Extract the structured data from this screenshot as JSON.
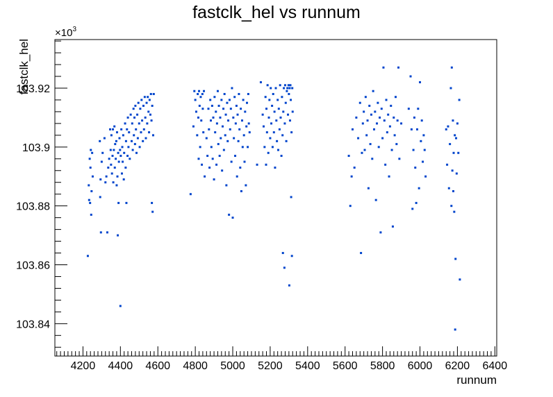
{
  "chart_data": {
    "type": "scatter",
    "title": "fastclk_hel vs runnum",
    "xlabel": "runnum",
    "ylabel": "fastclk_hel",
    "y_multiplier_label": "×10",
    "y_multiplier_exp": "3",
    "xlim": [
      4050,
      6410
    ],
    "ylim": [
      103.829,
      103.9365
    ],
    "x_ticks": [
      "4200",
      "4400",
      "4600",
      "4800",
      "5000",
      "5200",
      "5400",
      "5600",
      "5800",
      "6000",
      "6200",
      "6400"
    ],
    "y_ticks": [
      "103.84",
      "103.86",
      "103.88",
      "103.9",
      "103.92"
    ],
    "marker_color": "#0044cc",
    "grid": false,
    "points": [
      [
        4226,
        103.863
      ],
      [
        4231,
        103.887
      ],
      [
        4233,
        103.882
      ],
      [
        4236,
        103.896
      ],
      [
        4238,
        103.881
      ],
      [
        4240,
        103.893
      ],
      [
        4242,
        103.899
      ],
      [
        4244,
        103.877
      ],
      [
        4246,
        103.885
      ],
      [
        4249,
        103.898
      ],
      [
        4252,
        103.89
      ],
      [
        4290,
        103.902
      ],
      [
        4292,
        103.883
      ],
      [
        4294,
        103.889
      ],
      [
        4296,
        103.871
      ],
      [
        4300,
        103.895
      ],
      [
        4305,
        103.898
      ],
      [
        4315,
        103.903
      ],
      [
        4320,
        103.888
      ],
      [
        4325,
        103.89
      ],
      [
        4330,
        103.871
      ],
      [
        4335,
        103.893
      ],
      [
        4340,
        103.896
      ],
      [
        4345,
        103.906
      ],
      [
        4348,
        103.899
      ],
      [
        4350,
        103.894
      ],
      [
        4352,
        103.904
      ],
      [
        4355,
        103.891
      ],
      [
        4358,
        103.897
      ],
      [
        4360,
        103.906
      ],
      [
        4362,
        103.888
      ],
      [
        4365,
        103.899
      ],
      [
        4368,
        103.907
      ],
      [
        4370,
        103.893
      ],
      [
        4372,
        103.901
      ],
      [
        4375,
        103.896
      ],
      [
        4378,
        103.902
      ],
      [
        4380,
        103.887
      ],
      [
        4382,
        103.905
      ],
      [
        4384,
        103.89
      ],
      [
        4386,
        103.87
      ],
      [
        4388,
        103.898
      ],
      [
        4390,
        103.881
      ],
      [
        4392,
        103.895
      ],
      [
        4395,
        103.903
      ],
      [
        4398,
        103.899
      ],
      [
        4400,
        103.846
      ],
      [
        4402,
        103.897
      ],
      [
        4405,
        103.906
      ],
      [
        4408,
        103.891
      ],
      [
        4410,
        103.9
      ],
      [
        4412,
        103.895
      ],
      [
        4415,
        103.904
      ],
      [
        4418,
        103.889
      ],
      [
        4420,
        103.898
      ],
      [
        4425,
        103.908
      ],
      [
        4428,
        103.893
      ],
      [
        4430,
        103.902
      ],
      [
        4432,
        103.881
      ],
      [
        4435,
        103.906
      ],
      [
        4438,
        103.897
      ],
      [
        4440,
        103.91
      ],
      [
        4443,
        103.9
      ],
      [
        4446,
        103.905
      ],
      [
        4450,
        103.896
      ],
      [
        4455,
        103.911
      ],
      [
        4460,
        103.902
      ],
      [
        4463,
        103.908
      ],
      [
        4466,
        103.899
      ],
      [
        4470,
        103.913
      ],
      [
        4472,
        103.904
      ],
      [
        4475,
        103.91
      ],
      [
        4478,
        103.901
      ],
      [
        4480,
        103.914
      ],
      [
        4483,
        103.906
      ],
      [
        4486,
        103.898
      ],
      [
        4490,
        103.911
      ],
      [
        4493,
        103.903
      ],
      [
        4496,
        103.915
      ],
      [
        4500,
        103.908
      ],
      [
        4503,
        103.9
      ],
      [
        4506,
        103.913
      ],
      [
        4510,
        103.905
      ],
      [
        4513,
        103.916
      ],
      [
        4516,
        103.909
      ],
      [
        4520,
        103.902
      ],
      [
        4523,
        103.914
      ],
      [
        4526,
        103.906
      ],
      [
        4530,
        103.917
      ],
      [
        4533,
        103.91
      ],
      [
        4536,
        103.903
      ],
      [
        4540,
        103.915
      ],
      [
        4543,
        103.908
      ],
      [
        4546,
        103.917
      ],
      [
        4550,
        103.912
      ],
      [
        4553,
        103.905
      ],
      [
        4556,
        103.916
      ],
      [
        4560,
        103.911
      ],
      [
        4563,
        103.918
      ],
      [
        4566,
        103.909
      ],
      [
        4568,
        103.881
      ],
      [
        4570,
        103.914
      ],
      [
        4572,
        103.878
      ],
      [
        4575,
        103.904
      ],
      [
        4578,
        103.918
      ],
      [
        4775,
        103.884
      ],
      [
        4790,
        103.907
      ],
      [
        4795,
        103.919
      ],
      [
        4800,
        103.916
      ],
      [
        4805,
        103.912
      ],
      [
        4810,
        103.904
      ],
      [
        4813,
        103.918
      ],
      [
        4816,
        103.91
      ],
      [
        4818,
        103.896
      ],
      [
        4820,
        103.919
      ],
      [
        4823,
        103.914
      ],
      [
        4826,
        103.9
      ],
      [
        4829,
        103.917
      ],
      [
        4832,
        103.909
      ],
      [
        4835,
        103.894
      ],
      [
        4838,
        103.918
      ],
      [
        4840,
        103.913
      ],
      [
        4843,
        103.905
      ],
      [
        4846,
        103.919
      ],
      [
        4850,
        103.89
      ],
      [
        4860,
        103.903
      ],
      [
        4865,
        103.897
      ],
      [
        4870,
        103.913
      ],
      [
        4873,
        103.906
      ],
      [
        4876,
        103.893
      ],
      [
        4880,
        103.916
      ],
      [
        4883,
        103.909
      ],
      [
        4886,
        103.9
      ],
      [
        4890,
        103.914
      ],
      [
        4893,
        103.896
      ],
      [
        4896,
        103.91
      ],
      [
        4900,
        103.889
      ],
      [
        4903,
        103.917
      ],
      [
        4906,
        103.905
      ],
      [
        4910,
        103.912
      ],
      [
        4913,
        103.894
      ],
      [
        4916,
        103.908
      ],
      [
        4920,
        103.919
      ],
      [
        4923,
        103.901
      ],
      [
        4926,
        103.914
      ],
      [
        4930,
        103.897
      ],
      [
        4933,
        103.91
      ],
      [
        4936,
        103.903
      ],
      [
        4940,
        103.916
      ],
      [
        4943,
        103.892
      ],
      [
        4946,
        103.907
      ],
      [
        4950,
        103.913
      ],
      [
        4953,
        103.899
      ],
      [
        4956,
        103.918
      ],
      [
        4960,
        103.904
      ],
      [
        4963,
        103.911
      ],
      [
        4966,
        103.887
      ],
      [
        4970,
        103.915
      ],
      [
        4973,
        103.902
      ],
      [
        4976,
        103.909
      ],
      [
        4980,
        103.877
      ],
      [
        4983,
        103.916
      ],
      [
        4986,
        103.906
      ],
      [
        4990,
        103.913
      ],
      [
        4993,
        103.895
      ],
      [
        4996,
        103.92
      ],
      [
        5000,
        103.876
      ],
      [
        5003,
        103.91
      ],
      [
        5006,
        103.903
      ],
      [
        5010,
        103.917
      ],
      [
        5013,
        103.897
      ],
      [
        5016,
        103.908
      ],
      [
        5020,
        103.914
      ],
      [
        5023,
        103.89
      ],
      [
        5026,
        103.911
      ],
      [
        5030,
        103.902
      ],
      [
        5033,
        103.918
      ],
      [
        5036,
        103.906
      ],
      [
        5040,
        103.893
      ],
      [
        5043,
        103.913
      ],
      [
        5046,
        103.885
      ],
      [
        5050,
        103.909
      ],
      [
        5053,
        103.9
      ],
      [
        5056,
        103.916
      ],
      [
        5060,
        103.904
      ],
      [
        5063,
        103.895
      ],
      [
        5066,
        103.912
      ],
      [
        5070,
        103.887
      ],
      [
        5073,
        103.907
      ],
      [
        5076,
        103.915
      ],
      [
        5080,
        103.9
      ],
      [
        5083,
        103.918
      ],
      [
        5086,
        103.908
      ],
      [
        5090,
        103.905
      ],
      [
        5130,
        103.894
      ],
      [
        5150,
        103.922
      ],
      [
        5160,
        103.911
      ],
      [
        5165,
        103.907
      ],
      [
        5170,
        103.9
      ],
      [
        5175,
        103.917
      ],
      [
        5178,
        103.894
      ],
      [
        5180,
        103.913
      ],
      [
        5183,
        103.905
      ],
      [
        5186,
        103.921
      ],
      [
        5190,
        103.898
      ],
      [
        5193,
        103.91
      ],
      [
        5196,
        103.916
      ],
      [
        5200,
        103.903
      ],
      [
        5203,
        103.92
      ],
      [
        5206,
        103.908
      ],
      [
        5210,
        103.914
      ],
      [
        5213,
        103.9
      ],
      [
        5216,
        103.918
      ],
      [
        5220,
        103.905
      ],
      [
        5223,
        103.912
      ],
      [
        5226,
        103.893
      ],
      [
        5230,
        103.92
      ],
      [
        5233,
        103.909
      ],
      [
        5236,
        103.902
      ],
      [
        5240,
        103.916
      ],
      [
        5243,
        103.899
      ],
      [
        5246,
        103.913
      ],
      [
        5250,
        103.906
      ],
      [
        5253,
        103.921
      ],
      [
        5256,
        103.91
      ],
      [
        5260,
        103.897
      ],
      [
        5263,
        103.917
      ],
      [
        5266,
        103.904
      ],
      [
        5268,
        103.864
      ],
      [
        5270,
        103.912
      ],
      [
        5273,
        103.92
      ],
      [
        5276,
        103.859
      ],
      [
        5278,
        103.908
      ],
      [
        5280,
        103.921
      ],
      [
        5283,
        103.915
      ],
      [
        5286,
        103.902
      ],
      [
        5289,
        103.919
      ],
      [
        5292,
        103.92
      ],
      [
        5295,
        103.911
      ],
      [
        5298,
        103.921
      ],
      [
        5300,
        103.918
      ],
      [
        5302,
        103.853
      ],
      [
        5304,
        103.92
      ],
      [
        5306,
        103.909
      ],
      [
        5308,
        103.921
      ],
      [
        5310,
        103.916
      ],
      [
        5312,
        103.883
      ],
      [
        5314,
        103.905
      ],
      [
        5316,
        103.863
      ],
      [
        5318,
        103.92
      ],
      [
        5320,
        103.912
      ],
      [
        5620,
        103.897
      ],
      [
        5628,
        103.88
      ],
      [
        5635,
        103.89
      ],
      [
        5640,
        103.906
      ],
      [
        5650,
        103.893
      ],
      [
        5660,
        103.91
      ],
      [
        5670,
        103.903
      ],
      [
        5680,
        103.915
      ],
      [
        5685,
        103.864
      ],
      [
        5690,
        103.898
      ],
      [
        5695,
        103.908
      ],
      [
        5700,
        103.912
      ],
      [
        5705,
        103.899
      ],
      [
        5710,
        103.917
      ],
      [
        5715,
        103.904
      ],
      [
        5720,
        103.909
      ],
      [
        5725,
        103.886
      ],
      [
        5730,
        103.914
      ],
      [
        5735,
        103.901
      ],
      [
        5740,
        103.911
      ],
      [
        5745,
        103.896
      ],
      [
        5750,
        103.919
      ],
      [
        5755,
        103.906
      ],
      [
        5760,
        103.912
      ],
      [
        5765,
        103.882
      ],
      [
        5770,
        103.908
      ],
      [
        5775,
        103.915
      ],
      [
        5780,
        103.9
      ],
      [
        5785,
        103.91
      ],
      [
        5790,
        103.871
      ],
      [
        5795,
        103.913
      ],
      [
        5800,
        103.903
      ],
      [
        5805,
        103.927
      ],
      [
        5810,
        103.909
      ],
      [
        5815,
        103.894
      ],
      [
        5820,
        103.916
      ],
      [
        5825,
        103.905
      ],
      [
        5830,
        103.911
      ],
      [
        5835,
        103.89
      ],
      [
        5840,
        103.907
      ],
      [
        5845,
        103.914
      ],
      [
        5850,
        103.899
      ],
      [
        5855,
        103.873
      ],
      [
        5860,
        103.91
      ],
      [
        5865,
        103.904
      ],
      [
        5870,
        103.917
      ],
      [
        5875,
        103.901
      ],
      [
        5880,
        103.909
      ],
      [
        5885,
        103.927
      ],
      [
        5890,
        103.896
      ],
      [
        5900,
        103.908
      ],
      [
        5940,
        103.913
      ],
      [
        5950,
        103.924
      ],
      [
        5955,
        103.906
      ],
      [
        5960,
        103.879
      ],
      [
        5965,
        103.899
      ],
      [
        5970,
        103.91
      ],
      [
        5975,
        103.893
      ],
      [
        5980,
        103.881
      ],
      [
        5985,
        103.906
      ],
      [
        5990,
        103.913
      ],
      [
        5995,
        103.886
      ],
      [
        6000,
        103.922
      ],
      [
        6005,
        103.902
      ],
      [
        6010,
        103.909
      ],
      [
        6015,
        103.895
      ],
      [
        6020,
        103.904
      ],
      [
        6025,
        103.899
      ],
      [
        6030,
        103.89
      ],
      [
        6140,
        103.906
      ],
      [
        6145,
        103.894
      ],
      [
        6150,
        103.907
      ],
      [
        6155,
        103.886
      ],
      [
        6160,
        103.901
      ],
      [
        6165,
        103.92
      ],
      [
        6168,
        103.88
      ],
      [
        6170,
        103.927
      ],
      [
        6173,
        103.892
      ],
      [
        6176,
        103.909
      ],
      [
        6178,
        103.885
      ],
      [
        6180,
        103.898
      ],
      [
        6183,
        103.878
      ],
      [
        6186,
        103.904
      ],
      [
        6188,
        103.838
      ],
      [
        6190,
        103.862
      ],
      [
        6193,
        103.903
      ],
      [
        6196,
        103.891
      ],
      [
        6200,
        103.908
      ],
      [
        6205,
        103.898
      ],
      [
        6210,
        103.916
      ],
      [
        6213,
        103.855
      ]
    ]
  }
}
